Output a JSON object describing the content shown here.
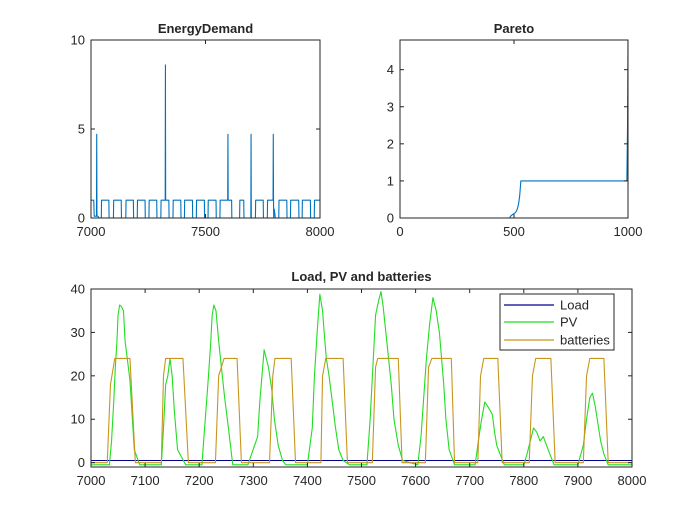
{
  "chart_data": [
    {
      "type": "line",
      "title": "EnergyDemand",
      "xlabel": "",
      "ylabel": "",
      "xlim": [
        7000,
        8000
      ],
      "ylim": [
        0,
        10
      ],
      "xticks": [
        7000,
        7500,
        8000
      ],
      "yticks": [
        0,
        5,
        10
      ],
      "grid": false,
      "series": [
        {
          "color": "#0072BD",
          "x": [
            7000,
            7012,
            7014,
            7024,
            7025,
            7026,
            7029,
            7030,
            7035,
            7045,
            7046,
            7078,
            7079,
            7098,
            7099,
            7132,
            7133,
            7152,
            7153,
            7185,
            7186,
            7202,
            7203,
            7236,
            7237,
            7253,
            7254,
            7287,
            7288,
            7305,
            7306,
            7324,
            7325,
            7326,
            7340,
            7341,
            7358,
            7359,
            7392,
            7393,
            7408,
            7409,
            7443,
            7444,
            7460,
            7461,
            7495,
            7496,
            7511,
            7512,
            7546,
            7547,
            7563,
            7564,
            7597,
            7598,
            7599,
            7600,
            7602,
            7614,
            7615,
            7649,
            7650,
            7667,
            7668,
            7698,
            7699,
            7700,
            7702,
            7718,
            7719,
            7752,
            7753,
            7770,
            7771,
            7795,
            7796,
            7797,
            7798,
            7800,
            7805,
            7820,
            7821,
            7855,
            7856,
            7871,
            7872,
            7907,
            7908,
            7922,
            7923,
            7958,
            7959,
            7975,
            7976,
            8000
          ],
          "y": [
            1.0,
            1.0,
            0.1,
            0.1,
            4.7,
            0.1,
            0.1,
            0.1,
            0.0,
            0.0,
            1.0,
            1.0,
            0.0,
            0.0,
            1.0,
            1.0,
            0.0,
            0.0,
            1.0,
            1.0,
            0.0,
            0.0,
            1.0,
            1.0,
            0.0,
            0.0,
            1.0,
            1.0,
            0.0,
            0.0,
            1.0,
            1.0,
            8.6,
            1.0,
            1.0,
            0.0,
            0.0,
            1.0,
            1.0,
            0.0,
            0.0,
            1.0,
            1.0,
            0.0,
            0.0,
            1.0,
            1.0,
            0.0,
            0.0,
            1.0,
            1.0,
            0.0,
            0.0,
            1.0,
            1.0,
            4.7,
            1.0,
            1.0,
            1.0,
            1.0,
            0.0,
            0.0,
            1.0,
            1.0,
            0.0,
            0.0,
            4.7,
            0.0,
            0.0,
            0.0,
            1.0,
            1.0,
            0.0,
            0.0,
            1.0,
            1.0,
            4.7,
            1.0,
            0.0,
            0.5,
            0.0,
            0.0,
            1.0,
            1.0,
            0.0,
            0.0,
            1.0,
            1.0,
            0.0,
            0.0,
            1.0,
            1.0,
            0.0,
            0.0,
            1.0,
            1.0
          ]
        }
      ]
    },
    {
      "type": "line",
      "title": "Pareto",
      "xlabel": "",
      "ylabel": "",
      "xlim": [
        0,
        1000
      ],
      "ylim": [
        0,
        4.8
      ],
      "xticks": [
        0,
        500,
        1000
      ],
      "yticks": [
        0,
        1,
        2,
        3,
        4
      ],
      "grid": false,
      "series": [
        {
          "color": "#0072BD",
          "x": [
            0,
            480,
            485,
            495,
            500,
            505,
            510,
            515,
            520,
            525,
            530,
            540,
            560,
            580,
            600,
            700,
            800,
            900,
            995,
            998,
            1000
          ],
          "y": [
            0,
            0,
            0.05,
            0.1,
            0.12,
            0.14,
            0.18,
            0.25,
            0.38,
            0.6,
            1.0,
            1.0,
            1.0,
            1.0,
            1.0,
            1.0,
            1.0,
            1.0,
            1.0,
            2.5,
            4.8
          ]
        }
      ]
    },
    {
      "type": "line",
      "title": "Load, PV and batteries",
      "xlabel": "",
      "ylabel": "",
      "xlim": [
        7000,
        8000
      ],
      "ylim": [
        -1,
        40
      ],
      "xticks": [
        7000,
        7100,
        7200,
        7300,
        7400,
        7500,
        7600,
        7700,
        7800,
        7900,
        8000
      ],
      "yticks": [
        0,
        10,
        20,
        30,
        40
      ],
      "grid": false,
      "legend": {
        "position": "top-right",
        "entries": [
          {
            "label": "Load",
            "color": "#00008B"
          },
          {
            "label": "PV",
            "color": "#22DD22"
          },
          {
            "label": "batteries",
            "color": "#C8961E"
          }
        ]
      },
      "series": [
        {
          "name": "Load",
          "color": "#00008B",
          "x": [
            7000,
            8000
          ],
          "y": [
            0.5,
            0.5
          ]
        },
        {
          "name": "PV",
          "color": "#22DD22",
          "x": [
            7000,
            7034,
            7038,
            7042,
            7045,
            7048,
            7050,
            7053,
            7056,
            7060,
            7063,
            7067,
            7072,
            7076,
            7080,
            7090,
            7130,
            7134,
            7138,
            7142,
            7146,
            7150,
            7154,
            7160,
            7175,
            7205,
            7210,
            7216,
            7221,
            7224,
            7227,
            7231,
            7236,
            7241,
            7247,
            7254,
            7262,
            7290,
            7308,
            7312,
            7316,
            7320,
            7324,
            7328,
            7334,
            7339,
            7346,
            7354,
            7360,
            7400,
            7409,
            7413,
            7418,
            7423,
            7428,
            7431,
            7435,
            7440,
            7446,
            7452,
            7458,
            7466,
            7478,
            7510,
            7516,
            7521,
            7526,
            7532,
            7536,
            7540,
            7545,
            7550,
            7555,
            7560,
            7568,
            7576,
            7604,
            7610,
            7615,
            7620,
            7626,
            7632,
            7638,
            7644,
            7648,
            7652,
            7656,
            7662,
            7672,
            7710,
            7716,
            7722,
            7728,
            7733,
            7738,
            7742,
            7746,
            7750,
            7756,
            7764,
            7800,
            7806,
            7812,
            7818,
            7824,
            7830,
            7836,
            7842,
            7848,
            7856,
            7900,
            7910,
            7916,
            7922,
            7927,
            7932,
            7937,
            7942,
            7948,
            7956,
            8000
          ],
          "y": [
            -0.5,
            -0.5,
            5,
            14,
            22,
            28,
            34,
            36.3,
            36,
            35,
            28,
            24,
            19,
            11,
            3,
            -0.5,
            -0.5,
            8,
            18,
            20,
            24,
            20,
            12,
            3,
            -0.5,
            -0.5,
            8,
            18,
            27,
            34,
            36.3,
            35,
            28,
            22,
            15,
            8,
            -0.5,
            -0.5,
            6,
            14,
            20,
            26,
            24,
            22,
            17,
            10,
            4,
            0.5,
            -0.5,
            -0.5,
            8,
            20,
            30,
            38.8,
            35,
            30,
            24,
            20,
            14,
            8,
            3,
            0.5,
            -0.5,
            -0.5,
            10,
            22,
            34,
            37.5,
            39.4,
            36,
            30,
            24,
            18,
            10,
            4,
            0.5,
            -0.5,
            6,
            15,
            24,
            32,
            38,
            35,
            30,
            24,
            18,
            10,
            3,
            -0.5,
            -0.5,
            5,
            10,
            14,
            13,
            12,
            11,
            7,
            4,
            2,
            -0.5,
            -0.5,
            2,
            5,
            8,
            7,
            5,
            6,
            4,
            2,
            -0.5,
            -0.5,
            4,
            10,
            15,
            16,
            13,
            9,
            5,
            2,
            -0.5,
            -0.5
          ]
        },
        {
          "name": "batteries",
          "color": "#C8961E",
          "x": [
            7000,
            7030,
            7036,
            7044,
            7072,
            7082,
            7130,
            7134,
            7138,
            7170,
            7180,
            7230,
            7236,
            7246,
            7270,
            7278,
            7330,
            7336,
            7340,
            7370,
            7378,
            7425,
            7428,
            7434,
            7466,
            7474,
            7520,
            7526,
            7530,
            7568,
            7575,
            7618,
            7624,
            7630,
            7666,
            7672,
            7715,
            7720,
            7726,
            7752,
            7760,
            7810,
            7816,
            7822,
            7850,
            7858,
            7910,
            7916,
            7922,
            7948,
            7956,
            8000
          ],
          "y": [
            0,
            0,
            18,
            24,
            24,
            0,
            0,
            20,
            24,
            24,
            0,
            0,
            20,
            24,
            24,
            0,
            0,
            20,
            24,
            24,
            0,
            0,
            20,
            24,
            24,
            0,
            0,
            22,
            24,
            24,
            0,
            0,
            22,
            24,
            24,
            0,
            0,
            20,
            24,
            24,
            0,
            0,
            20,
            24,
            24,
            0,
            0,
            20,
            24,
            24,
            0,
            0
          ]
        }
      ]
    }
  ]
}
